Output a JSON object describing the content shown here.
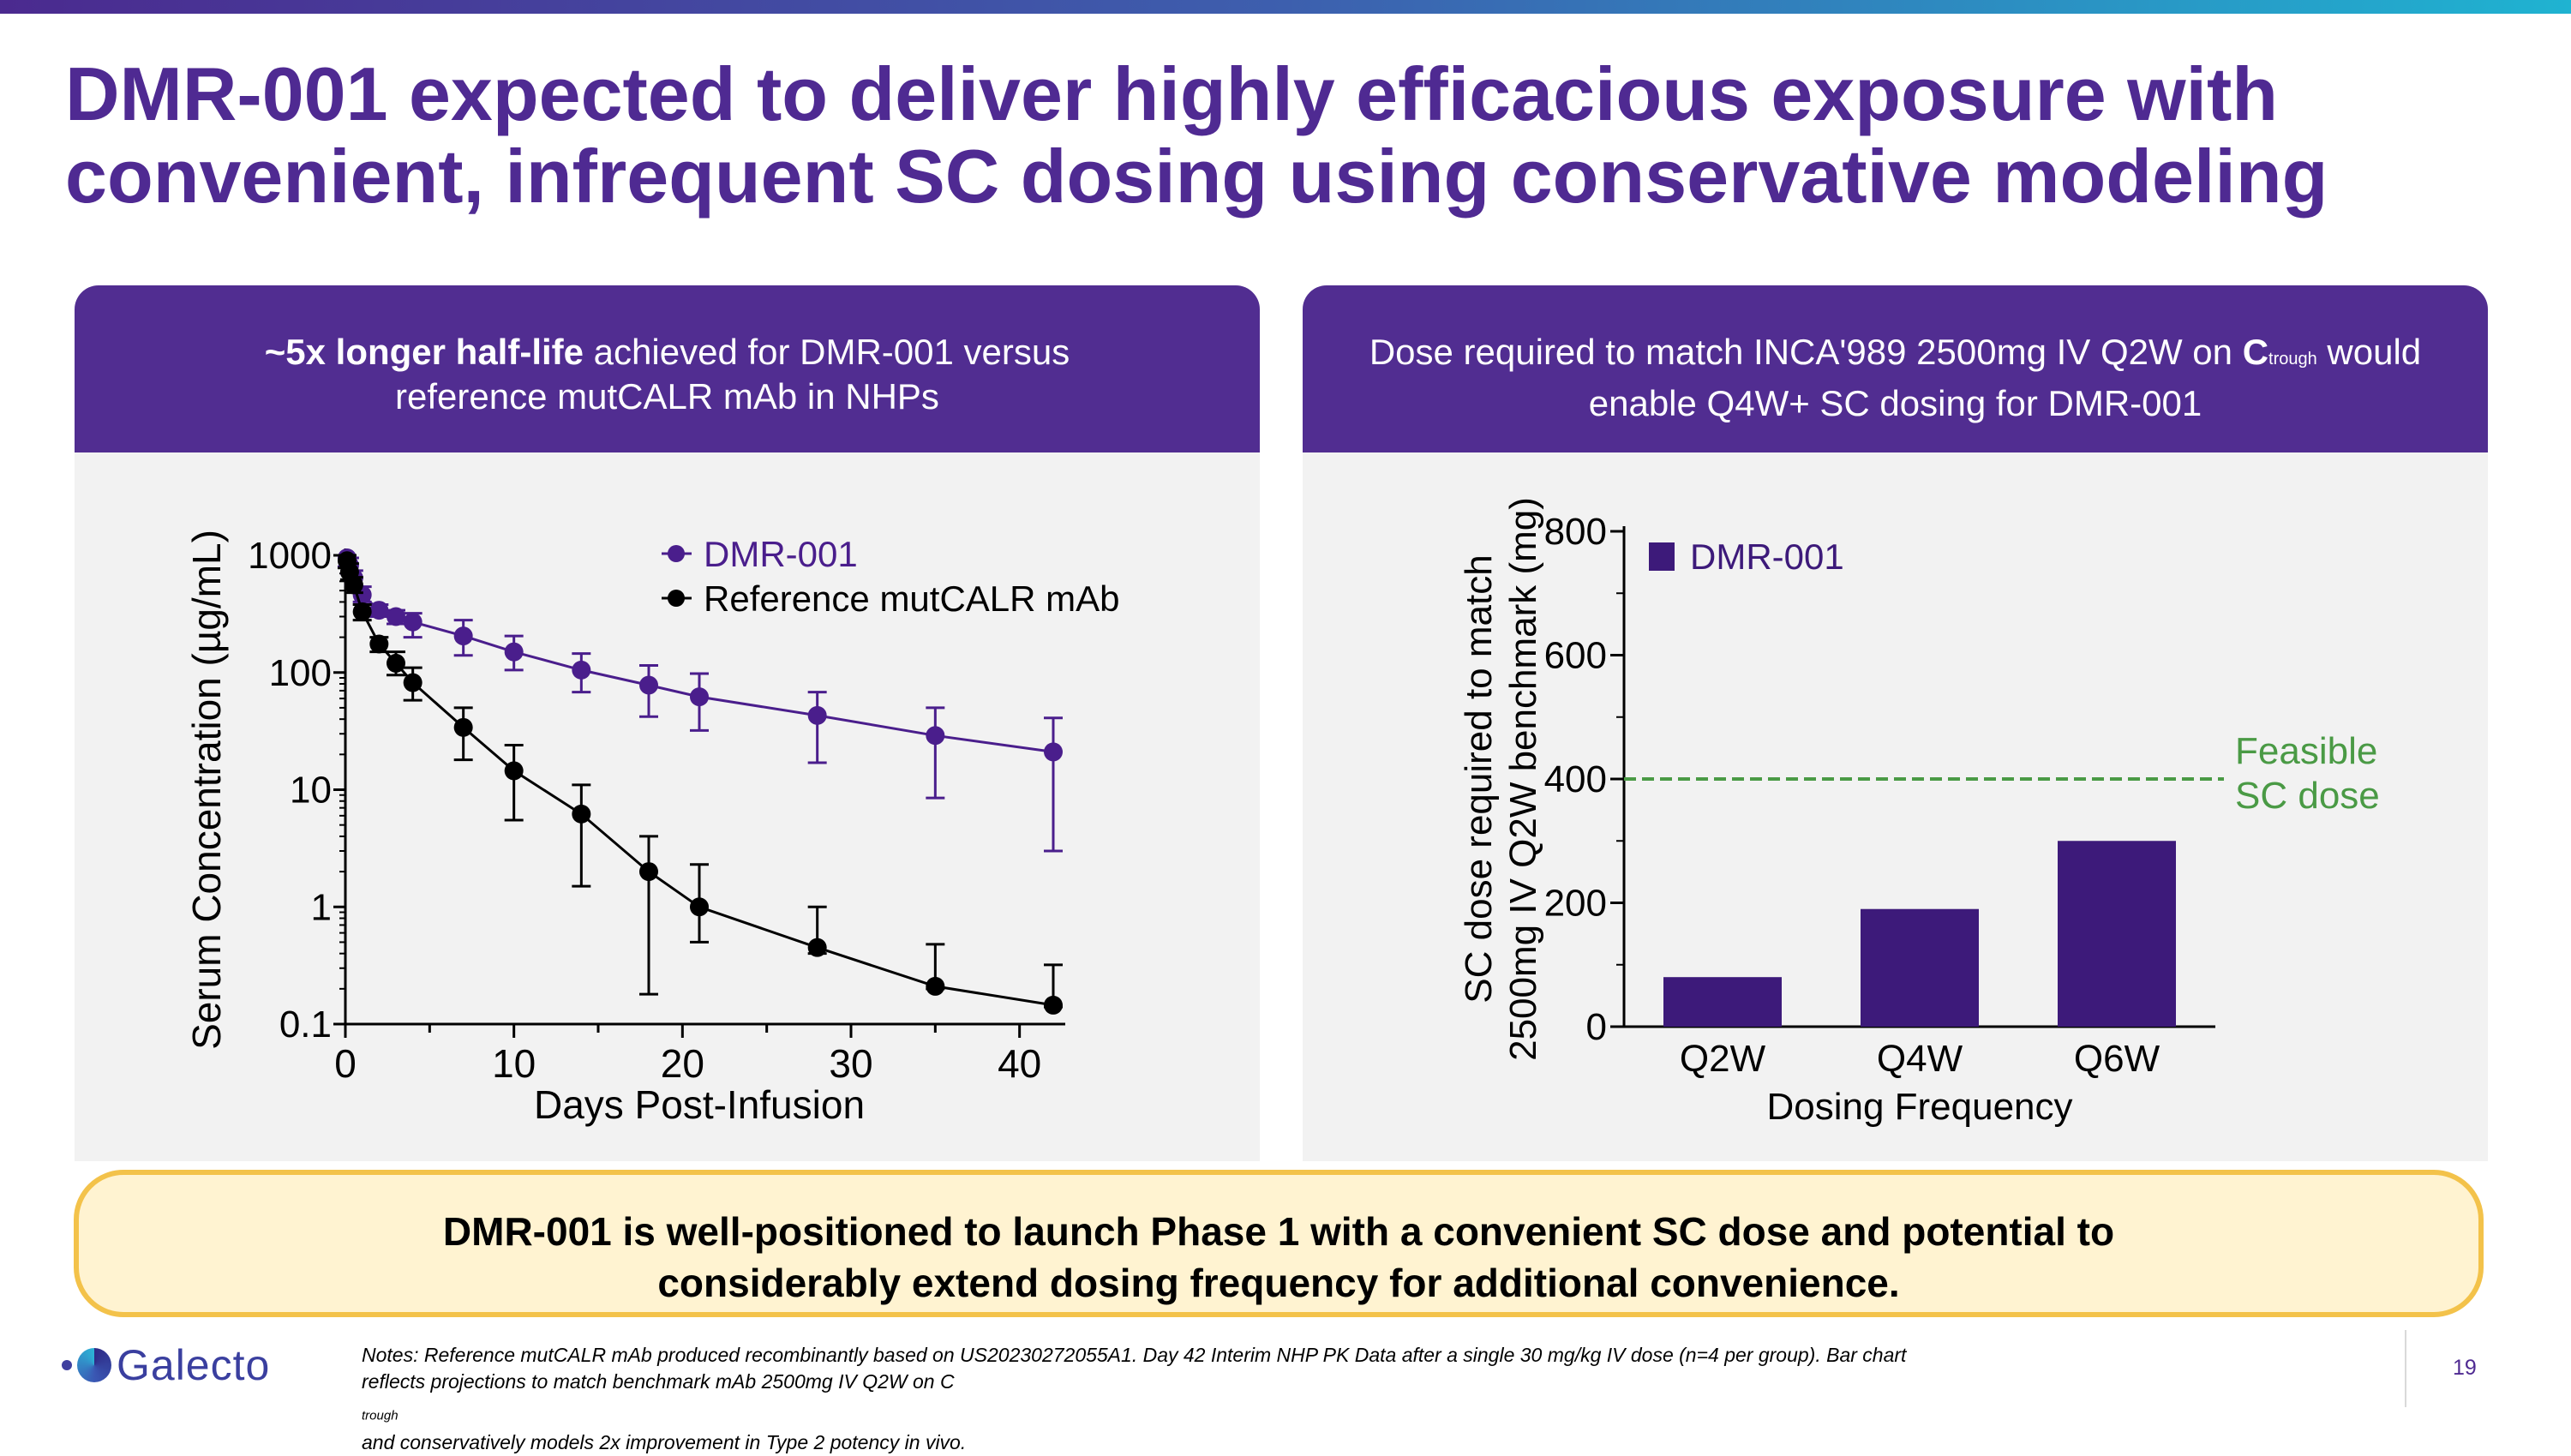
{
  "title": [
    "DMR-001 expected to deliver highly efficacious exposure with",
    "convenient, infrequent SC dosing using conservative modeling"
  ],
  "left_panel": {
    "header_bold": "~5x longer half-life",
    "header_rest": " achieved for DMR-001 versus",
    "header_line2": "reference mutCALR mAb in NHPs"
  },
  "right_panel": {
    "header_pre": "Dose required to match INCA'989 2500mg IV Q2W on ",
    "header_c": "C",
    "header_sub": "trough",
    "header_post": " would",
    "header_line2": "enable Q4W+ SC dosing for DMR-001"
  },
  "chart_data": [
    {
      "type": "line",
      "y_scale": "log",
      "xlabel": "Days Post-Infusion",
      "ylabel": "Serum Concentration (µg/mL)",
      "xlim": [
        0,
        42
      ],
      "ylim": [
        0.1,
        1000
      ],
      "x_ticks": [
        "0",
        "10",
        "20",
        "30",
        "40"
      ],
      "y_ticks": [
        "0.1",
        "1",
        "10",
        "100",
        "1000"
      ],
      "legend_position": "top-right",
      "series": [
        {
          "name": "DMR-001",
          "color": "#4a1e8c",
          "x": [
            0.1,
            0.25,
            0.5,
            1,
            2,
            3,
            4,
            7,
            10,
            14,
            18,
            21,
            28,
            35,
            42
          ],
          "y": [
            950,
            820,
            640,
            460,
            340,
            300,
            270,
            205,
            150,
            105,
            78,
            62,
            43,
            29,
            21
          ],
          "err_low": [
            800,
            700,
            560,
            400,
            300,
            260,
            200,
            140,
            105,
            68,
            42,
            32,
            17,
            8.5,
            3
          ],
          "err_high": [
            1000,
            950,
            740,
            540,
            380,
            340,
            320,
            280,
            205,
            145,
            115,
            98,
            68,
            50,
            41
          ]
        },
        {
          "name": "Reference mutCALR mAb",
          "color": "#000000",
          "x": [
            0.1,
            0.25,
            0.5,
            1,
            2,
            3,
            4,
            7,
            10,
            14,
            18,
            21,
            28,
            35,
            42
          ],
          "y": [
            900,
            720,
            560,
            330,
            175,
            120,
            82,
            34,
            14.5,
            6.2,
            2.0,
            1.0,
            0.45,
            0.21,
            0.145
          ],
          "err_low": [
            780,
            620,
            480,
            280,
            150,
            95,
            58,
            18,
            5.5,
            1.5,
            0.18,
            0.5,
            0.4,
            0.2,
            0.14
          ],
          "err_high": [
            1000,
            850,
            650,
            380,
            200,
            150,
            110,
            50,
            24,
            11,
            4,
            2.3,
            1.0,
            0.48,
            0.32
          ]
        }
      ]
    },
    {
      "type": "bar",
      "categories": [
        "Q2W",
        "Q4W",
        "Q6W"
      ],
      "values": [
        80,
        190,
        300
      ],
      "series_name": "DMR-001",
      "color": "#3d1a7a",
      "xlabel": "Dosing Frequency",
      "ylabel_line1": "SC dose required to match",
      "ylabel_line2": "2500mg IV Q2W benchmark (mg)",
      "ylim": [
        0,
        800
      ],
      "y_ticks": [
        "0",
        "200",
        "400",
        "600",
        "800"
      ],
      "reference_line": {
        "value": 400,
        "label_line1": "Feasible",
        "label_line2": "SC dose",
        "color": "#4a9a45"
      },
      "legend_position": "top-left"
    }
  ],
  "callout": [
    "DMR-001 is well-positioned to launch Phase 1 with a convenient SC dose and potential to",
    "considerably extend dosing frequency for additional convenience."
  ],
  "logo_text": "Galecto",
  "notes": {
    "line1": "Notes: Reference mutCALR mAb produced recombinantly based on US20230272055A1. Day 42 Interim NHP PK Data after a single 30 mg/kg IV dose (n=4 per group). Bar chart",
    "line2_pre": "reflects projections to match benchmark mAb 2500mg IV Q2W on C",
    "line2_sub": "trough",
    "line2_post": " and conservatively models 2x improvement in Type 2 potency in vivo."
  },
  "page_number": "19"
}
